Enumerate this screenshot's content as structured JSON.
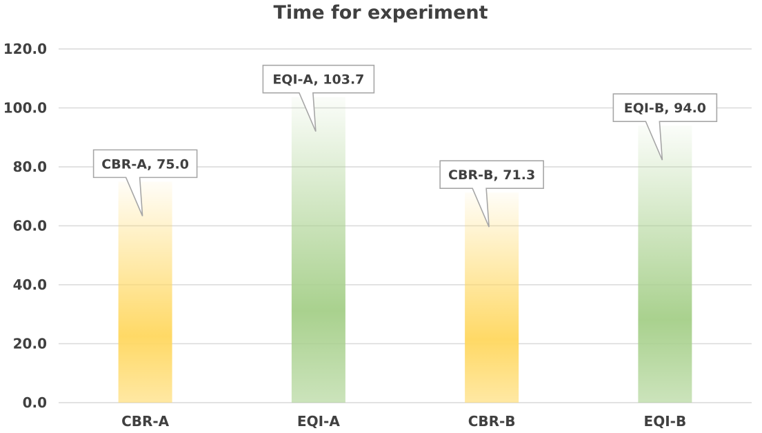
{
  "chart_data": {
    "type": "bar",
    "title": "Time for experiment",
    "categories": [
      "CBR-A",
      "EQI-A",
      "CBR-B",
      "EQI-B"
    ],
    "values": [
      75.0,
      103.7,
      71.3,
      94.0
    ],
    "data_labels": [
      "CBR-A, 75.0",
      "EQI-A, 103.7",
      "CBR-B, 71.3",
      "EQI-B, 94.0"
    ],
    "bar_colors": [
      "#ffd966",
      "#a9d18e",
      "#ffd966",
      "#a9d18e"
    ],
    "ylim": [
      0,
      120
    ],
    "yticks": [
      0,
      20,
      40,
      60,
      80,
      100,
      120
    ],
    "ytick_labels": [
      "0.0",
      "20.0",
      "40.0",
      "60.0",
      "80.0",
      "100.0",
      "120.0"
    ],
    "grid": true,
    "legend": "none"
  }
}
